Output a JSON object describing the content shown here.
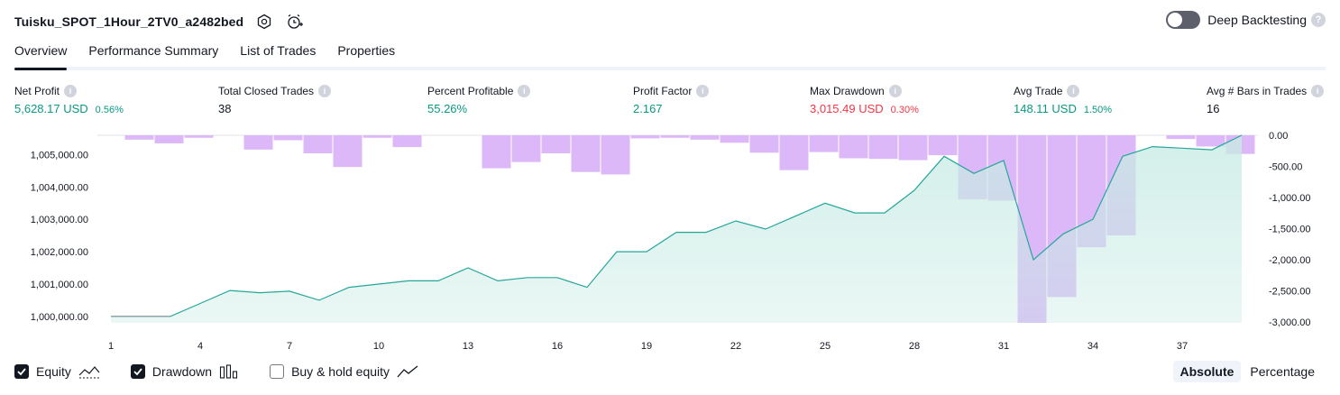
{
  "header": {
    "title": "Tuisku_SPOT_1Hour_2TV0_a2482bed",
    "settings_icon": "gear-icon",
    "alert_icon": "alarm-clock-add-icon"
  },
  "deep_backtesting": {
    "label": "Deep Backtesting",
    "enabled": false
  },
  "tabs": [
    {
      "label": "Overview",
      "active": true
    },
    {
      "label": "Performance Summary",
      "active": false
    },
    {
      "label": "List of Trades",
      "active": false
    },
    {
      "label": "Properties",
      "active": false
    }
  ],
  "metrics": [
    {
      "label": "Net Profit",
      "value": "5,628.17 USD",
      "pct": "0.56%",
      "tone": "green"
    },
    {
      "label": "Total Closed Trades",
      "value": "38",
      "pct": "",
      "tone": "dark"
    },
    {
      "label": "Percent Profitable",
      "value": "55.26%",
      "pct": "",
      "tone": "green"
    },
    {
      "label": "Profit Factor",
      "value": "2.167",
      "pct": "",
      "tone": "green"
    },
    {
      "label": "Max Drawdown",
      "value": "3,015.49 USD",
      "pct": "0.30%",
      "tone": "red"
    },
    {
      "label": "Avg Trade",
      "value": "148.11 USD",
      "pct": "1.50%",
      "tone": "green"
    },
    {
      "label": "Avg # Bars in Trades",
      "value": "16",
      "pct": "",
      "tone": "dark"
    }
  ],
  "colors": {
    "equity_line": "#26a69a",
    "equity_fill": "#c8ebe4",
    "drawdown_bar": "#dcb8f8",
    "buy_hold_line": "#9598a1",
    "green": "#089981",
    "red": "#f23645"
  },
  "chart_data": {
    "type": "area",
    "x_ticks": [
      "1",
      "4",
      "7",
      "10",
      "13",
      "16",
      "19",
      "22",
      "25",
      "28",
      "31",
      "34",
      "37"
    ],
    "left_axis": {
      "ticks": [
        "1,000,000.00",
        "1,001,000.00",
        "1,002,000.00",
        "1,003,000.00",
        "1,004,000.00",
        "1,005,000.00"
      ],
      "min": 999800,
      "max": 1005600
    },
    "right_axis": {
      "ticks": [
        "0.00",
        "-500.00",
        "-1,000.00",
        "-1,500.00",
        "-2,000.00",
        "-2,500.00",
        "-3,000.00"
      ],
      "min": -3015.49,
      "max": 0
    },
    "equity": {
      "x": [
        1,
        2,
        3,
        4,
        5,
        6,
        7,
        8,
        9,
        10,
        11,
        12,
        13,
        14,
        15,
        16,
        17,
        18,
        19,
        20,
        21,
        22,
        23,
        24,
        25,
        26,
        27,
        28,
        29,
        30,
        31,
        32,
        33,
        34,
        35,
        36,
        37,
        38,
        39
      ],
      "values": [
        1000000,
        1000000,
        1000000,
        1000400,
        1000800,
        1000730,
        1000780,
        1000500,
        1000900,
        1001000,
        1001100,
        1001100,
        1001500,
        1001100,
        1001200,
        1001200,
        1000900,
        1002000,
        1002000,
        1002600,
        1002600,
        1002950,
        1002700,
        1003100,
        1003500,
        1003200,
        1003200,
        1003900,
        1004950,
        1004420,
        1004820,
        1001750,
        1002550,
        1003000,
        1004950,
        1005250,
        1005200,
        1005150,
        1005600
      ]
    },
    "drawdown": {
      "x": [
        1,
        2,
        3,
        4,
        5,
        6,
        7,
        8,
        9,
        10,
        11,
        12,
        13,
        14,
        15,
        16,
        17,
        18,
        19,
        20,
        21,
        22,
        23,
        24,
        25,
        26,
        27,
        28,
        29,
        30,
        31,
        32,
        33,
        34,
        35,
        36,
        37,
        38,
        39
      ],
      "values": [
        0,
        -70,
        -130,
        -40,
        0,
        -230,
        -80,
        -290,
        -510,
        -40,
        -190,
        0,
        0,
        -530,
        -430,
        -290,
        -590,
        -630,
        -50,
        -40,
        -70,
        -120,
        -280,
        -560,
        -270,
        -370,
        -380,
        -400,
        -320,
        -1030,
        -1050,
        -3015.49,
        -2600,
        -1800,
        -1610,
        0,
        -60,
        -180,
        -300
      ]
    },
    "series": [
      {
        "name": "Equity",
        "checked": true,
        "icon": "equity-area-icon"
      },
      {
        "name": "Drawdown",
        "checked": true,
        "icon": "drawdown-bars-icon"
      },
      {
        "name": "Buy & hold equity",
        "checked": false,
        "icon": "buy-hold-line-icon"
      }
    ]
  },
  "view_mode": {
    "options": [
      "Absolute",
      "Percentage"
    ],
    "selected": "Absolute"
  }
}
